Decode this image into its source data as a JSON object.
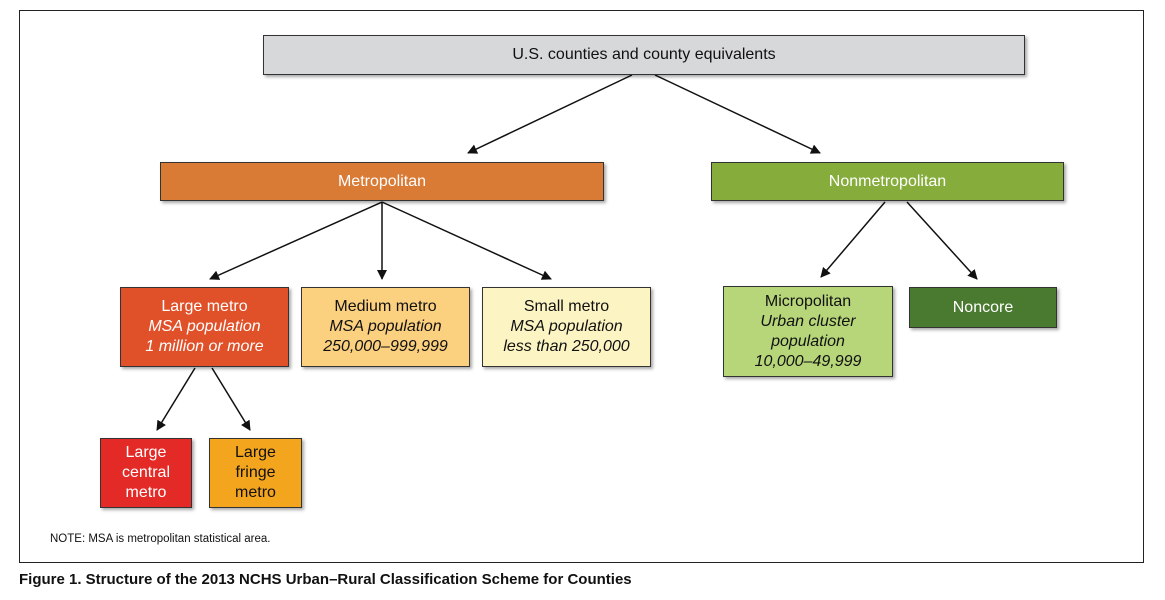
{
  "diagram": {
    "root": {
      "label": "U.S. counties and county equivalents"
    },
    "metropolitan": {
      "label": "Metropolitan"
    },
    "nonmetropolitan": {
      "label": "Nonmetropolitan"
    },
    "large_metro": {
      "title": "Large metro",
      "line1": "MSA population",
      "line2": "1 million or more"
    },
    "medium_metro": {
      "title": "Medium metro",
      "line1": "MSA population",
      "line2": "250,000–999,999"
    },
    "small_metro": {
      "title": "Small metro",
      "line1": "MSA population",
      "line2": "less than 250,000"
    },
    "micropolitan": {
      "title": "Micropolitan",
      "line1": "Urban cluster",
      "line2": "population",
      "line3": "10,000–49,999"
    },
    "noncore": {
      "label": "Noncore"
    },
    "large_central_metro": {
      "line1": "Large",
      "line2": "central",
      "line3": "metro"
    },
    "large_fringe_metro": {
      "line1": "Large",
      "line2": "fringe",
      "line3": "metro"
    },
    "note": "NOTE: MSA is metropolitan statistical area."
  },
  "caption": "Figure 1. Structure of the 2013 NCHS Urban–Rural Classification Scheme for Counties",
  "colors": {
    "root": "#d7d8da",
    "metropolitan": "#d97a35",
    "nonmetropolitan": "#86ad3c",
    "large_metro": "#e0512a",
    "medium_metro": "#fbd07f",
    "small_metro": "#fcf4c2",
    "micropolitan": "#b7d67a",
    "noncore": "#4a7a30",
    "large_central_metro": "#e42a27",
    "large_fringe_metro": "#f3a51e"
  }
}
